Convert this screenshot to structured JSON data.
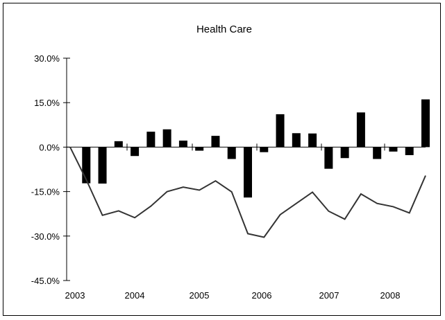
{
  "chart_data": {
    "type": "bar+line",
    "title": "Health Care",
    "xlabel": "",
    "ylabel": "",
    "ylim": [
      -45,
      30
    ],
    "y_ticks": [
      30,
      15,
      0,
      -15,
      -30,
      -45
    ],
    "y_tick_labels": [
      "30.0%",
      "15.0%",
      "0.0%",
      "-15.0%",
      "-30.0%",
      "-45.0%"
    ],
    "x_tick_labels": [
      "2003",
      "2004",
      "2005",
      "2006",
      "2007",
      "2008"
    ],
    "grid": false,
    "legend": "none",
    "series": [
      {
        "type": "bar",
        "color": "#000000",
        "values": [
          -12.2,
          -12.3,
          2.0,
          -3.0,
          5.2,
          6.0,
          2.2,
          -1.2,
          3.8,
          -4.0,
          -17.0,
          -1.7,
          11.1,
          4.7,
          4.6,
          -7.3,
          -3.7,
          11.7,
          -4.0,
          -1.5,
          -2.7,
          16.1
        ]
      },
      {
        "type": "line",
        "color": "#333333",
        "values": [
          0.0,
          -11.0,
          -23.0,
          -21.5,
          -23.8,
          -19.9,
          -15.0,
          -13.5,
          -14.5,
          -11.4,
          -15.1,
          -29.2,
          -30.4,
          -22.8,
          -19.0,
          -15.2,
          -21.6,
          -24.3,
          -15.8,
          -19.0,
          -20.1,
          -22.2,
          -9.6
        ]
      }
    ]
  }
}
